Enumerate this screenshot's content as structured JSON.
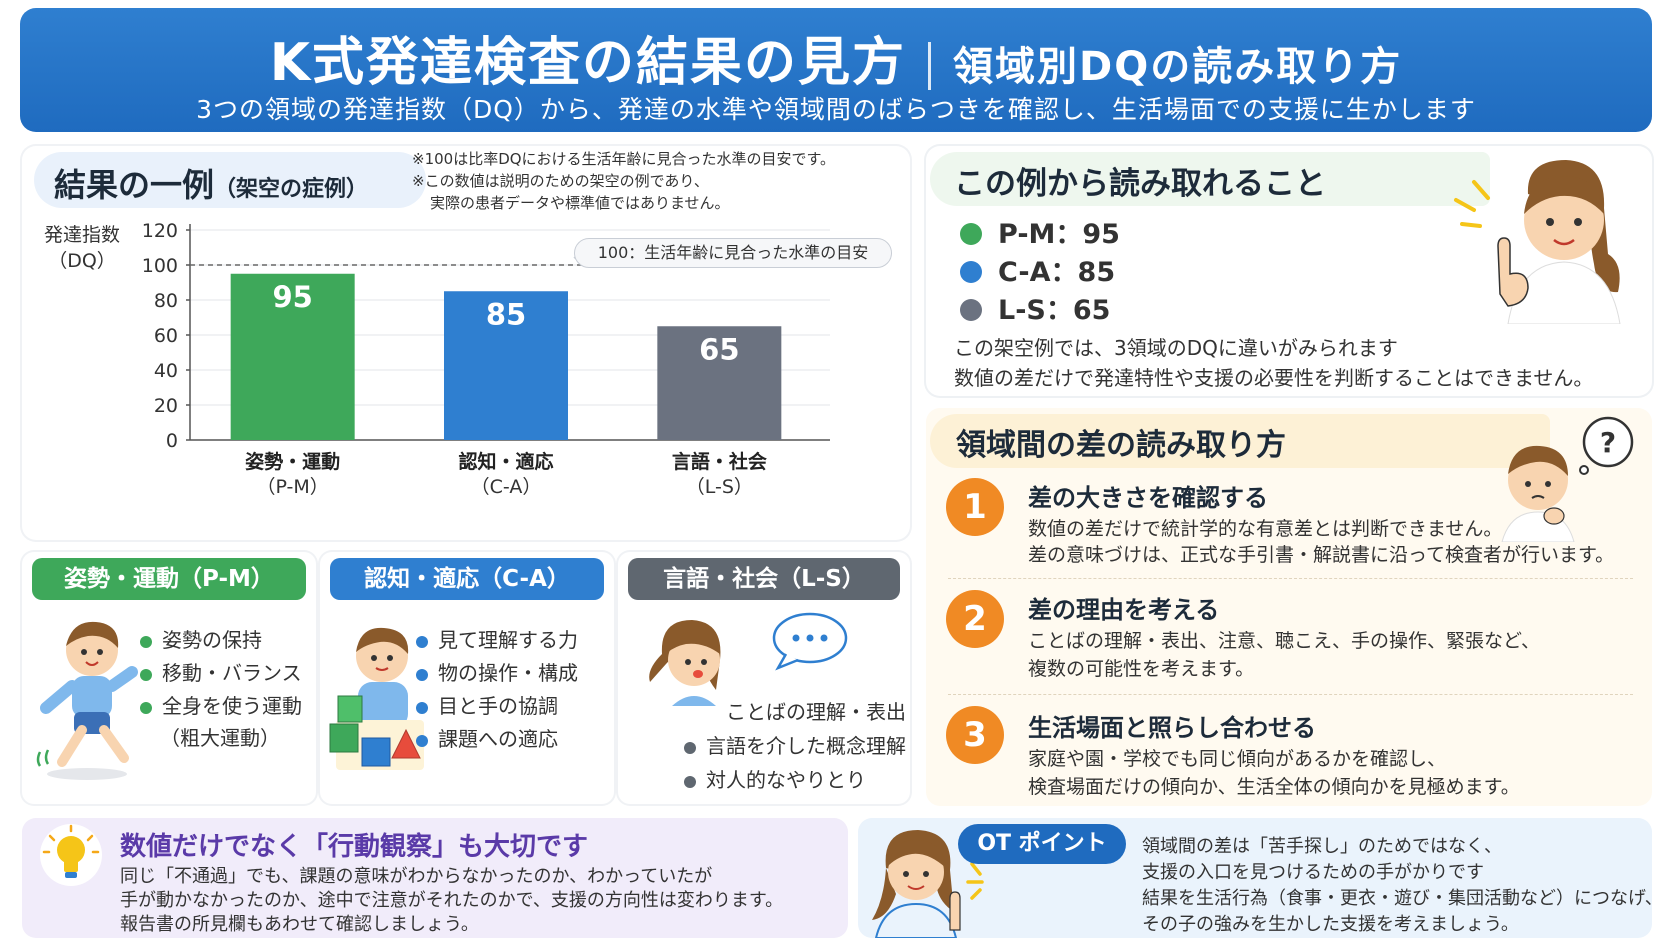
{
  "header": {
    "title": "K式発達検査の結果の見方",
    "title_sub": "領域別DQの読み取り方",
    "subtitle": "3つの領域の発達指数（DQ）から、発達の水準や領域間のばらつきを確認し、生活場面での支援に生かします"
  },
  "result": {
    "title": "結果の一例",
    "title_small": "（架空の症例）",
    "note1": "※100は比率DQにおける生活年齢に見合った水準の目安です。",
    "note2": "※この数値は説明のための架空の例であり、",
    "note3": "実際の患者データや標準値ではありません。",
    "ylabel_line1": "発達指数",
    "ylabel_line2": "（DQ）",
    "ref_label": "100：生活年齢に見合った水準の目安"
  },
  "chart_data": {
    "type": "bar",
    "categories": [
      "姿勢・運動\n（P-M）",
      "認知・適応\n（C-A）",
      "言語・社会\n（L-S）"
    ],
    "category_line1": [
      "姿勢・運動",
      "認知・適応",
      "言語・社会"
    ],
    "category_line2": [
      "（P-M）",
      "（C-A）",
      "（L-S）"
    ],
    "values": [
      95,
      85,
      65
    ],
    "value_labels": [
      "95",
      "85",
      "65"
    ],
    "colors": [
      "#3ea85a",
      "#2f7fd0",
      "#6b7280"
    ],
    "ylim": [
      0,
      120
    ],
    "yticks": [
      "0",
      "20",
      "40",
      "60",
      "80",
      "100",
      "120"
    ],
    "reference_line": 100,
    "ylabel": "発達指数（DQ）"
  },
  "domains": [
    {
      "title": "姿勢・運動（P-M）",
      "color": "#3ea85a",
      "items": [
        "姿勢の保持",
        "移動・バランス",
        "全身を使う運動",
        "（粗大運動）"
      ]
    },
    {
      "title": "認知・適応（C-A）",
      "color": "#2f7fd0",
      "items": [
        "見て理解する力",
        "物の操作・構成",
        "目と手の協調",
        "課題への適応"
      ]
    },
    {
      "title": "言語・社会（L-S）",
      "color": "#5f6770",
      "items": [
        "ことばの理解・表出",
        "言語を介した概念理解",
        "対人的なやりとり"
      ]
    }
  ],
  "behavior": {
    "title": "数値だけでなく「行動観察」も大切です",
    "line1": "同じ「不通過」でも、課題の意味がわからなかったのか、わかっていたが",
    "line2": "手が動かなかったのか、途中で注意がそれたのかで、支援の方向性は変わります。",
    "line3": "報告書の所見欄もあわせて確認しましょう。"
  },
  "reading": {
    "title": "この例から読み取れること",
    "legend": [
      {
        "label": "P-M：95",
        "color": "#3ea85a"
      },
      {
        "label": "C-A：85",
        "color": "#2f7fd0"
      },
      {
        "label": "L-S：65",
        "color": "#6b7280"
      }
    ],
    "line1": "この架空例では、3領域のDQに違いがみられます",
    "line2": "数値の差だけで発達特性や支援の必要性を判断することはできません。"
  },
  "differences": {
    "title": "領域間の差の読み取り方",
    "steps": [
      {
        "num": "1",
        "title": "差の大きさを確認する",
        "line1": "数値の差だけで統計学的な有意差とは判断できません。",
        "line2": "差の意味づけは、正式な手引書・解説書に沿って検査者が行います。"
      },
      {
        "num": "2",
        "title": "差の理由を考える",
        "line1": "ことばの理解・表出、注意、聴こえ、手の操作、緊張など、",
        "line2": "複数の可能性を考えます。"
      },
      {
        "num": "3",
        "title": "生活場面と照らし合わせる",
        "line1": "家庭や園・学校でも同じ傾向があるかを確認し、",
        "line2": "検査場面だけの傾向か、生活全体の傾向かを見極めます。"
      }
    ]
  },
  "ot": {
    "badge": "OT ポイント",
    "line1": "領域間の差は「苦手探し」のためではなく、",
    "line2": "支援の入口を見つけるための手がかりです",
    "line3": "結果を生活行為（食事・更衣・遊び・集団活動など）につなげ、",
    "line4": "その子の強みを生かした支援を考えましょう。"
  },
  "icons": {
    "bulb": "lightbulb-icon",
    "speech": "speech-bubble-icon",
    "question": "question-bubble-icon"
  }
}
